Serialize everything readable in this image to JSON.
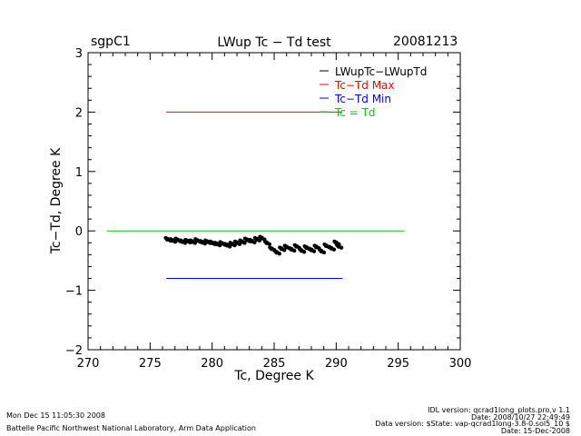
{
  "header": {
    "site": "sgpC1",
    "title": "LWup Tc − Td test",
    "date": "20081213"
  },
  "footer": {
    "timestamp": "Mon Dec 15 11:05:30 2008",
    "lab": "Battelle Pacific Northwest National Laboratory, Arm Data Application",
    "idl_version": "IDL version: qcrad1long_plots.pro,v 1.1",
    "file_date": "Date: 2008/10/27 22:49:49",
    "data_version": "Data version: $State: vap-qcrad1long-3.8-0.sol5_10 $",
    "data_date": "Date: 15-Dec-2008"
  },
  "chart_data": {
    "type": "scatter",
    "title": "LWup Tc − Td test",
    "xlabel": "Tc, Degree K",
    "ylabel": "Tc−Td, Degree K",
    "xlim": [
      270,
      300
    ],
    "ylim": [
      -2,
      3
    ],
    "x_ticks": [
      "270",
      "275",
      "280",
      "285",
      "290",
      "295",
      "300"
    ],
    "y_ticks": [
      "−2",
      "−1",
      "0",
      "1",
      "2",
      "3"
    ],
    "grid": false,
    "legend_position": "top-right",
    "series": [
      {
        "name": "LWupTc−LWupTd",
        "color": "#000000",
        "kind": "points",
        "x": [
          276.4,
          276.8,
          277.2,
          277.6,
          278.0,
          278.4,
          278.8,
          279.2,
          279.6,
          280.0,
          280.4,
          280.8,
          281.2,
          281.6,
          282.0,
          282.4,
          282.8,
          283.2,
          283.6,
          284.0,
          284.4,
          284.8,
          285.2,
          285.6,
          286.0,
          286.4,
          286.8,
          287.2,
          287.6,
          288.0,
          288.4,
          288.8,
          289.2,
          289.6,
          290.0,
          290.2
        ],
        "y": [
          -0.14,
          -0.16,
          -0.15,
          -0.18,
          -0.17,
          -0.18,
          -0.16,
          -0.19,
          -0.18,
          -0.2,
          -0.22,
          -0.21,
          -0.24,
          -0.22,
          -0.2,
          -0.18,
          -0.15,
          -0.17,
          -0.14,
          -0.12,
          -0.2,
          -0.3,
          -0.36,
          -0.3,
          -0.27,
          -0.31,
          -0.26,
          -0.33,
          -0.28,
          -0.32,
          -0.27,
          -0.34,
          -0.25,
          -0.29,
          -0.2,
          -0.26
        ]
      },
      {
        "name": "Tc−Td Max",
        "color": "#ff0000",
        "kind": "line",
        "x": [
          276.3,
          290.5
        ],
        "y": [
          2,
          2
        ]
      },
      {
        "name": "Tc−Td Min",
        "color": "#0000ff",
        "kind": "line",
        "x": [
          276.3,
          290.5
        ],
        "y": [
          -0.8,
          -0.8
        ]
      },
      {
        "name": "Tc = Td",
        "color": "#00cc00",
        "kind": "line",
        "x": [
          271.5,
          295.5
        ],
        "y": [
          0,
          0
        ]
      }
    ]
  }
}
